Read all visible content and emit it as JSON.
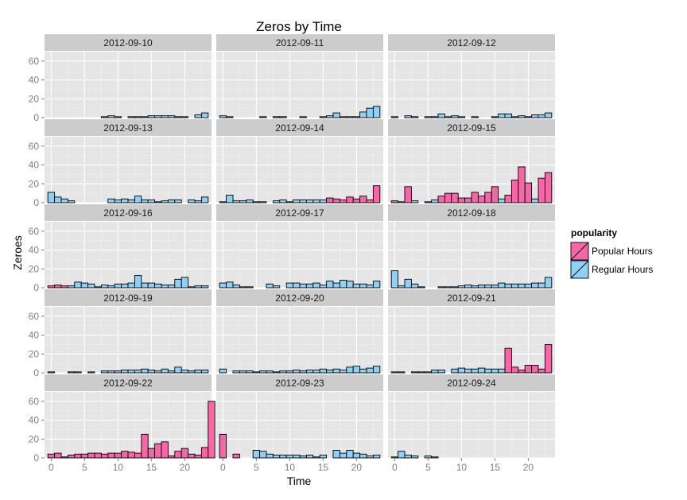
{
  "chart_data": {
    "type": "bar",
    "title": "Zeros by Time",
    "xlabel": "Time",
    "ylabel": "Zeroes",
    "xlim": [
      -1,
      24
    ],
    "ylim": [
      0,
      70
    ],
    "x_ticks": [
      0,
      5,
      10,
      15,
      20
    ],
    "y_ticks": [
      0,
      20,
      40,
      60
    ],
    "legend": {
      "title": "popularity",
      "position": "right",
      "entries": [
        {
          "name": "Popular Hours",
          "color": "#f766a7"
        },
        {
          "name": "Regular Hours",
          "color": "#8fd0f6"
        }
      ]
    },
    "colors": {
      "panel_bg": "#e5e5e5",
      "strip_bg": "#cccccc",
      "grid_major": "#ffffff",
      "grid_minor": "#f0f0f0",
      "bar_outline": "#000000",
      "axis_text": "#7f7f7f"
    },
    "panels": [
      {
        "date": "2012-09-10",
        "hours": [
          -1,
          -1,
          -1,
          -1,
          -1,
          -1,
          -1,
          0,
          1,
          2,
          1,
          0,
          1,
          1,
          1,
          2,
          2,
          2,
          2,
          1,
          1,
          0,
          3,
          5
        ],
        "popular": []
      },
      {
        "date": "2012-09-11",
        "hours": [
          2,
          1,
          0,
          0,
          0,
          0,
          1,
          0,
          1,
          1,
          0,
          0,
          1,
          0,
          0,
          1,
          2,
          5,
          1,
          1,
          1,
          6,
          10,
          12
        ],
        "popular": []
      },
      {
        "date": "2012-09-12",
        "hours": [
          1,
          0,
          2,
          1,
          0,
          1,
          1,
          4,
          1,
          2,
          1,
          0,
          1,
          0,
          0,
          1,
          4,
          4,
          1,
          2,
          1,
          3,
          3,
          5
        ],
        "popular": []
      },
      {
        "date": "2012-09-13",
        "hours": [
          11,
          6,
          4,
          2,
          0,
          0,
          0,
          0,
          0,
          4,
          3,
          4,
          3,
          7,
          3,
          3,
          1,
          2,
          3,
          3,
          0,
          3,
          2,
          6
        ],
        "popular": []
      },
      {
        "date": "2012-09-14",
        "hours": [
          1,
          8,
          2,
          2,
          3,
          1,
          1,
          0,
          2,
          3,
          1,
          3,
          3,
          3,
          3,
          3,
          5,
          4,
          3,
          6,
          4,
          7,
          3,
          18
        ],
        "popular": [
          16,
          17,
          18,
          19,
          20,
          21,
          22,
          23
        ]
      },
      {
        "date": "2012-09-15",
        "hours": [
          2,
          1,
          17,
          2,
          0,
          1,
          3,
          7,
          10,
          10,
          5,
          5,
          11,
          7,
          11,
          17,
          4,
          8,
          24,
          38,
          21,
          4,
          26,
          32
        ],
        "popular": [
          0,
          2,
          7,
          8,
          9,
          10,
          11,
          12,
          13,
          14,
          15,
          17,
          18,
          19,
          20,
          22,
          23
        ]
      },
      {
        "date": "2012-09-16",
        "hours": [
          2,
          3,
          2,
          2,
          6,
          5,
          4,
          1,
          3,
          2,
          4,
          4,
          5,
          13,
          5,
          5,
          4,
          3,
          3,
          9,
          11,
          1,
          2,
          2
        ],
        "popular": [
          0,
          1,
          2
        ]
      },
      {
        "date": "2012-09-17",
        "hours": [
          5,
          6,
          3,
          1,
          1,
          0,
          0,
          4,
          2,
          0,
          5,
          5,
          4,
          4,
          5,
          3,
          7,
          5,
          8,
          7,
          4,
          4,
          3,
          7
        ],
        "popular": []
      },
      {
        "date": "2012-09-18",
        "hours": [
          18,
          2,
          9,
          4,
          1,
          0,
          0,
          1,
          1,
          1,
          2,
          3,
          2,
          3,
          3,
          3,
          5,
          4,
          4,
          4,
          4,
          5,
          5,
          11
        ],
        "popular": []
      },
      {
        "date": "2012-09-19",
        "hours": [
          1,
          0,
          0,
          1,
          1,
          0,
          1,
          0,
          2,
          2,
          2,
          3,
          3,
          3,
          4,
          3,
          2,
          4,
          2,
          6,
          3,
          2,
          3,
          3
        ],
        "popular": []
      },
      {
        "date": "2012-09-20",
        "hours": [
          4,
          0,
          2,
          2,
          2,
          1,
          2,
          2,
          1,
          2,
          2,
          3,
          2,
          3,
          3,
          4,
          3,
          4,
          3,
          6,
          7,
          4,
          5,
          7
        ],
        "popular": []
      },
      {
        "date": "2012-09-21",
        "hours": [
          1,
          1,
          0,
          1,
          1,
          1,
          3,
          3,
          0,
          4,
          5,
          4,
          4,
          5,
          4,
          4,
          4,
          26,
          6,
          3,
          8,
          8,
          4,
          30
        ],
        "popular": [
          17,
          18,
          19,
          20,
          21,
          22,
          23
        ]
      },
      {
        "date": "2012-09-22",
        "hours": [
          4,
          5,
          1,
          3,
          4,
          4,
          5,
          5,
          4,
          5,
          5,
          7,
          6,
          5,
          25,
          10,
          15,
          17,
          2,
          7,
          10,
          4,
          3,
          11,
          60
        ],
        "popular": [
          0,
          1,
          2,
          3,
          4,
          5,
          6,
          7,
          8,
          9,
          10,
          11,
          12,
          13,
          14,
          15,
          16,
          17,
          18,
          19,
          20,
          21,
          22,
          23,
          24
        ]
      },
      {
        "date": "2012-09-23",
        "hours": [
          25,
          0,
          4,
          0,
          0,
          8,
          7,
          4,
          3,
          3,
          3,
          3,
          2,
          3,
          1,
          3,
          0,
          8,
          5,
          8,
          5,
          4,
          2,
          3
        ],
        "popular": [
          0,
          1,
          2,
          3
        ]
      },
      {
        "date": "2012-09-24",
        "hours": [
          1,
          7,
          3,
          2,
          0,
          2,
          1
        ],
        "popular": []
      }
    ]
  }
}
